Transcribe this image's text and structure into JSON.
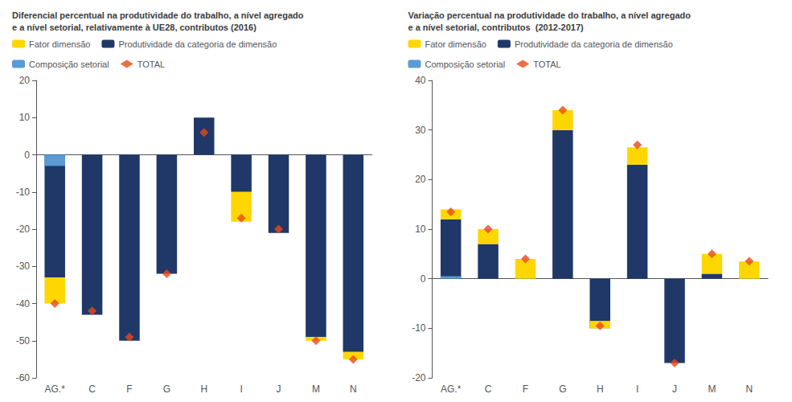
{
  "chart_data": [
    {
      "type": "bar",
      "title": "Diferencial percentual na produtividade do trabalho, a nível agregado\ne a nível setorial, relativamente à UE28, contributos (2016)",
      "categories": [
        "AG.*",
        "C",
        "F",
        "G",
        "H",
        "I",
        "J",
        "M",
        "N"
      ],
      "series": [
        {
          "name": "Fator dimensão",
          "color": "#FFD700",
          "values": [
            -7,
            0,
            0,
            0,
            0,
            -8,
            0,
            -1,
            -2
          ]
        },
        {
          "name": "Produtividade da categoria de dimensão",
          "color": "#1F3868",
          "values": [
            -33,
            -43,
            -50,
            -32,
            10,
            -10,
            -21,
            -49,
            -53
          ]
        },
        {
          "name": "Composição setorial",
          "color": "#5B9BD5",
          "values": [
            -3,
            0,
            0,
            0,
            0,
            0,
            0,
            0,
            0
          ]
        },
        {
          "name": "TOTAL",
          "type": "scatter",
          "marker": "diamond",
          "color": "#E84818",
          "values": [
            -40,
            -42,
            -49,
            -32,
            6,
            -17,
            -20,
            -50,
            -55
          ]
        }
      ],
      "stacked": true,
      "ylim": [
        -60,
        20
      ],
      "yticks": [
        -60,
        -50,
        -40,
        -30,
        -20,
        -10,
        0,
        10,
        20
      ],
      "grid": false,
      "legend": "upper left"
    },
    {
      "type": "bar",
      "title": "Variação percentual na produtividade do trabalho, a nível agregado\ne a nível setorial, contributos  (2012-2017)",
      "categories": [
        "AG.*",
        "C",
        "F",
        "G",
        "H",
        "I",
        "J",
        "M",
        "N"
      ],
      "series": [
        {
          "name": "Fator dimensão",
          "color": "#FFD700",
          "values": [
            2,
            3,
            4,
            4,
            1.5,
            3.5,
            0,
            4,
            3.5
          ]
        },
        {
          "name": "Produtividade da categoria de dimensão",
          "color": "#1F3868",
          "values": [
            12,
            7,
            0,
            30,
            -10,
            23,
            -17,
            1,
            0
          ]
        },
        {
          "name": "Composição setorial",
          "color": "#5B9BD5",
          "values": [
            0.5,
            0,
            0,
            0,
            0,
            0,
            0,
            0,
            0
          ]
        },
        {
          "name": "TOTAL",
          "type": "scatter",
          "marker": "diamond",
          "color": "#E84818",
          "values": [
            13.5,
            10,
            4,
            34,
            -9.5,
            27,
            -17,
            5,
            3.5
          ]
        }
      ],
      "stacked": true,
      "ylim": [
        -20,
        40
      ],
      "yticks": [
        -20,
        -10,
        0,
        10,
        20,
        30,
        40
      ],
      "grid": false,
      "legend": "upper left"
    }
  ]
}
